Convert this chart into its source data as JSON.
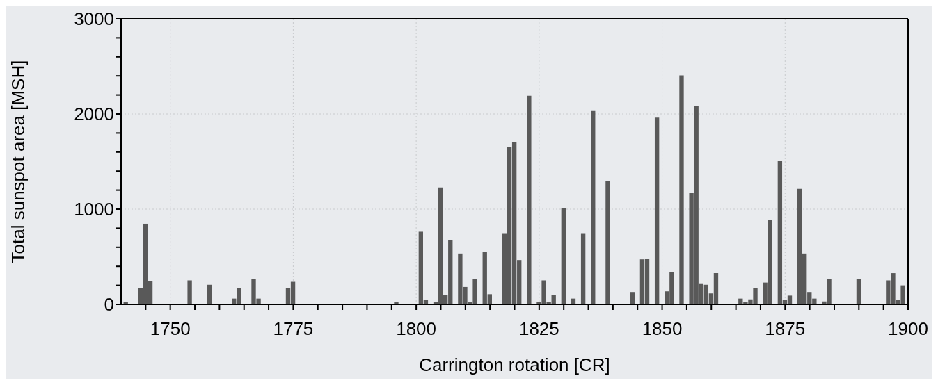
{
  "chart_data": {
    "type": "bar",
    "xlabel": "Carrington rotation [CR]",
    "ylabel": "Total sunspot area [MSH]",
    "x": [
      1741,
      1744,
      1745,
      1746,
      1748,
      1754,
      1758,
      1760,
      1763,
      1764,
      1767,
      1768,
      1774,
      1775,
      1788,
      1791,
      1793,
      1796,
      1801,
      1802,
      1804,
      1805,
      1806,
      1807,
      1809,
      1810,
      1811,
      1812,
      1814,
      1815,
      1818,
      1819,
      1820,
      1821,
      1823,
      1825,
      1826,
      1827,
      1828,
      1829,
      1830,
      1832,
      1834,
      1836,
      1839,
      1843,
      1844,
      1846,
      1847,
      1849,
      1851,
      1852,
      1854,
      1856,
      1857,
      1858,
      1859,
      1860,
      1861,
      1866,
      1867,
      1868,
      1869,
      1871,
      1872,
      1874,
      1875,
      1876,
      1878,
      1879,
      1880,
      1881,
      1883,
      1884,
      1890,
      1896,
      1897,
      1898,
      1899
    ],
    "values": [
      25,
      175,
      847,
      244,
      null,
      252,
      206,
      3,
      61,
      175,
      267,
      61,
      175,
      237,
      null,
      null,
      null,
      23,
      763,
      51,
      23,
      1229,
      99,
      672,
      534,
      183,
      23,
      267,
      550,
      107,
      748,
      1649,
      1702,
      466,
      2191,
      23,
      252,
      23,
      99,
      null,
      1015,
      61,
      748,
      2031,
      1298,
      null,
      130,
      473,
      481,
      1962,
      137,
      336,
      2405,
      1176,
      2084,
      221,
      206,
      115,
      328,
      61,
      23,
      53,
      168,
      229,
      885,
      1511,
      46,
      92,
      1214,
      534,
      130,
      61,
      31,
      267,
      267,
      252,
      328,
      50,
      200
    ],
    "color": "#595959",
    "xlim": [
      1740,
      1900
    ],
    "xticks": [
      {
        "value": 1745,
        "label": null
      },
      1750,
      {
        "value": 1755,
        "label": null
      },
      {
        "value": 1760,
        "label": null
      },
      {
        "value": 1765,
        "label": null
      },
      {
        "value": 1770,
        "label": null
      },
      1775,
      {
        "value": 1780,
        "label": null
      },
      {
        "value": 1785,
        "label": null
      },
      {
        "value": 1790,
        "label": null
      },
      {
        "value": 1795,
        "label": null
      },
      1800,
      {
        "value": 1805,
        "label": null
      },
      {
        "value": 1810,
        "label": null
      },
      {
        "value": 1815,
        "label": null
      },
      {
        "value": 1820,
        "label": null
      },
      1825,
      {
        "value": 1830,
        "label": null
      },
      {
        "value": 1835,
        "label": null
      },
      {
        "value": 1840,
        "label": null
      },
      {
        "value": 1845,
        "label": null
      },
      1850,
      {
        "value": 1855,
        "label": null
      },
      {
        "value": 1860,
        "label": null
      },
      {
        "value": 1865,
        "label": null
      },
      {
        "value": 1870,
        "label": null
      },
      1875,
      {
        "value": 1880,
        "label": null
      },
      {
        "value": 1885,
        "label": null
      },
      {
        "value": 1890,
        "label": null
      },
      {
        "value": 1895,
        "label": null
      },
      1900
    ],
    "ylim": [
      0,
      3000
    ],
    "yticks": [
      0,
      {
        "value": 200,
        "label": null
      },
      {
        "value": 400,
        "label": null
      },
      {
        "value": 600,
        "label": null
      },
      {
        "value": 800,
        "label": null
      },
      1000,
      {
        "value": 1200,
        "label": null
      },
      {
        "value": 1400,
        "label": null
      },
      {
        "value": 1600,
        "label": null
      },
      {
        "value": 1800,
        "label": null
      },
      2000,
      {
        "value": 2200,
        "label": null
      },
      {
        "value": 2400,
        "label": null
      },
      {
        "value": 2600,
        "label": null
      },
      {
        "value": 2800,
        "label": null
      },
      3000
    ],
    "grid": true
  }
}
